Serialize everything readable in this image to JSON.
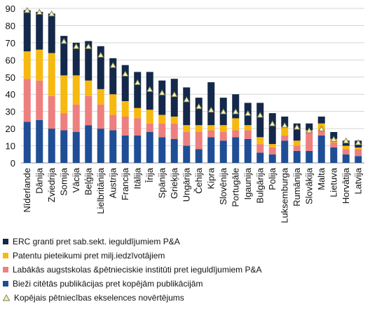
{
  "chart_data": {
    "type": "bar",
    "stacked": true,
    "ylim": [
      0,
      90
    ],
    "yticks": [
      0,
      10,
      20,
      30,
      40,
      50,
      60,
      70,
      80,
      90
    ],
    "grid": true,
    "legend_position": "bottom",
    "categories": [
      "Nīderlande",
      "Dānija",
      "Zviedrija",
      "Somija",
      "Vācija",
      "Beļģija",
      "Lielbritānija",
      "Austrija",
      "Francija",
      "Itālija",
      "Īrija",
      "Spānija",
      "Grieķija",
      "Ungārija",
      "Čehija",
      "Kipra",
      "Slovēnija",
      "Portugāle",
      "Igaunija",
      "Bulgārija",
      "Polija",
      "Luksemburga",
      "Rumānija",
      "Slovākija",
      "Malta",
      "Lietuva",
      "Horvātija",
      "Latvija"
    ],
    "series": [
      {
        "name": "Bieži citētās publikācijas pret kopējām publikācijām",
        "color": "#1f4e96",
        "values": [
          24,
          25,
          20,
          19,
          18,
          22,
          20,
          19,
          16,
          16,
          18,
          15,
          14,
          10,
          8,
          15,
          13,
          15,
          14,
          6,
          5,
          13,
          7,
          7,
          16,
          9,
          5,
          4
        ]
      },
      {
        "name": "Labākās augstskolas &pētnieciskie institūti pret ieguldījumiem P&A",
        "color": "#ee7f7f",
        "values": [
          25,
          23,
          19,
          10,
          16,
          17,
          14,
          9,
          11,
          10,
          5,
          8,
          9,
          8,
          10,
          4,
          5,
          4,
          5,
          5,
          4,
          3,
          3,
          11,
          3,
          3,
          3,
          4
        ]
      },
      {
        "name": "Patentu pieteikumi pret milj.iedzīvotājiem",
        "color": "#f7b90f",
        "values": [
          16,
          18,
          25,
          22,
          17,
          9,
          9,
          12,
          9,
          6,
          8,
          5,
          4,
          4,
          4,
          3,
          4,
          7,
          3,
          4,
          2,
          5,
          3,
          1,
          4,
          2,
          2,
          1
        ]
      },
      {
        "name": "ERC granti pret sab.sekt. ieguldījumiem P&A",
        "color": "#14284b",
        "values": [
          24,
          22,
          23,
          23,
          19,
          23,
          25,
          21,
          21,
          21,
          22,
          20,
          22,
          22,
          16,
          25,
          16,
          14,
          13,
          20,
          18,
          6,
          10,
          4,
          4,
          4,
          3,
          4
        ]
      },
      {
        "name": "Kopējais pētniecības ekselences novērtējums",
        "type": "marker",
        "color": "#f2f2c0",
        "values": [
          89,
          88,
          87,
          71,
          68,
          68,
          63,
          57,
          52,
          47,
          43,
          41,
          40,
          37,
          33,
          31,
          30,
          30,
          29,
          28,
          23,
          22,
          21,
          19,
          20,
          14,
          13,
          12
        ]
      }
    ],
    "legend_order": [
      "ERC granti pret sab.sekt. ieguldījumiem P&A",
      "Patentu pieteikumi pret milj.iedzīvotājiem",
      "Labākās augstskolas &pētnieciskie institūti pret ieguldījumiem P&A",
      "Bieži citētās publikācijas pret kopējām publikācijām",
      "Kopējais pētniecības ekselences novērtējums"
    ]
  }
}
